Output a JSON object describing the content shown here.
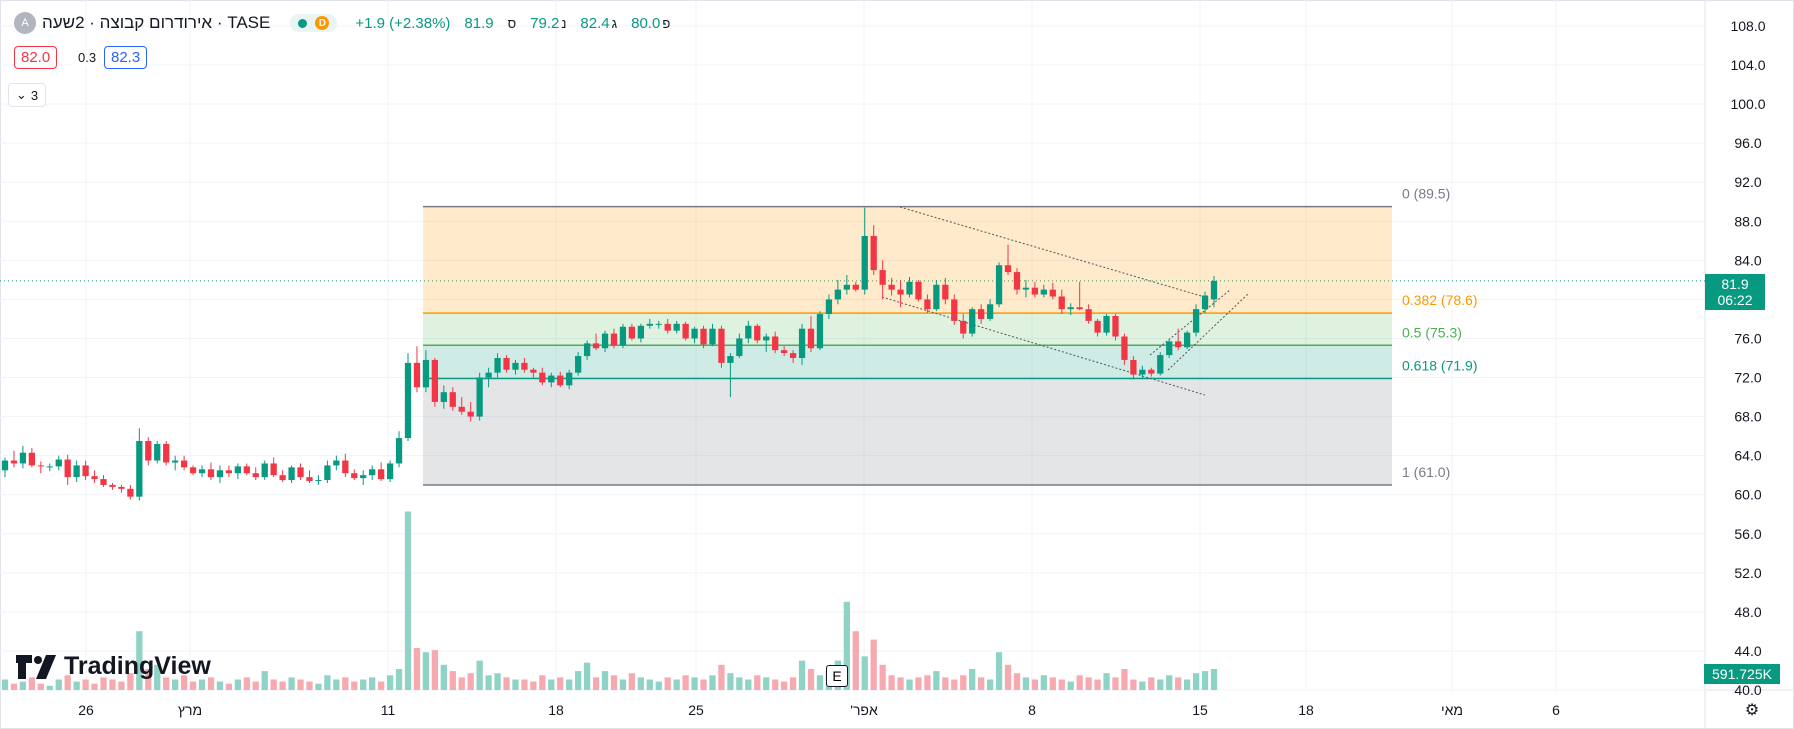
{
  "header": {
    "symbol_badge": "A",
    "title": "אירודרום קבוצה · 2שעה · TASE",
    "status_letter": "D",
    "ohlc": [
      {
        "label": "פ",
        "value": "80.0"
      },
      {
        "label": "ג",
        "value": "82.4"
      },
      {
        "label": "נ",
        "value": "79.2"
      },
      {
        "label": "ס",
        "value": "81.9"
      }
    ],
    "change": "+1.9 (+2.38%)"
  },
  "quote": {
    "bid": "82.0",
    "spread": "0.3",
    "ask": "82.3"
  },
  "collapse": {
    "count": "3"
  },
  "brand": {
    "name": "TradingView"
  },
  "earnings_marker": "E",
  "colors": {
    "up": "#089981",
    "down": "#f23645",
    "vol_up": "#8fd3c6",
    "vol_down": "#f7a9b0"
  },
  "price_axis": {
    "ticks": [
      "108.0",
      "104.0",
      "100.0",
      "96.0",
      "92.0",
      "88.0",
      "84.0",
      "80.0",
      "76.0",
      "72.0",
      "68.0",
      "64.0",
      "60.0",
      "56.0",
      "52.0",
      "48.0",
      "44.0",
      "40.0"
    ],
    "current_price": "81.9",
    "countdown": "06:22",
    "volume_label": "591.725K"
  },
  "time_axis": {
    "labels": [
      "26",
      "מרץ",
      "11",
      "18",
      "25",
      "'אפר",
      "8",
      "15",
      "18",
      "מאי",
      "6"
    ]
  },
  "fib": {
    "levels": [
      {
        "label": "0 (89.5)",
        "price": 89.5,
        "color": "#787b86"
      },
      {
        "label": "0.382 (78.6)",
        "price": 78.6,
        "color": "#ff9800"
      },
      {
        "label": "0.5 (75.3)",
        "price": 75.3,
        "color": "#4caf50"
      },
      {
        "label": "0.618 (71.9)",
        "price": 71.9,
        "color": "#089981"
      },
      {
        "label": "1 (61.0)",
        "price": 61.0,
        "color": "#787b86"
      }
    ]
  },
  "chart_data": {
    "type": "candlestick",
    "y_range": [
      40,
      110
    ],
    "ohlc": [
      [
        62.5,
        63.8,
        61.8,
        63.5
      ],
      [
        63.5,
        64.5,
        62.8,
        63.2
      ],
      [
        63.2,
        65.0,
        62.7,
        64.3
      ],
      [
        64.3,
        64.8,
        62.8,
        63.0
      ],
      [
        63.0,
        63.4,
        62.2,
        62.9
      ],
      [
        62.9,
        63.2,
        62.4,
        62.9
      ],
      [
        62.9,
        64.0,
        62.5,
        63.6
      ],
      [
        63.6,
        64.1,
        61.0,
        61.8
      ],
      [
        61.8,
        63.5,
        61.3,
        63.0
      ],
      [
        63.0,
        63.5,
        61.5,
        61.9
      ],
      [
        61.9,
        62.5,
        61.2,
        61.6
      ],
      [
        61.6,
        62.0,
        60.8,
        61.0
      ],
      [
        61.0,
        61.2,
        60.5,
        60.8
      ],
      [
        60.8,
        61.0,
        60.2,
        60.6
      ],
      [
        60.6,
        61.0,
        59.5,
        59.8
      ],
      [
        59.8,
        66.8,
        59.4,
        65.5
      ],
      [
        65.5,
        65.9,
        63.0,
        63.5
      ],
      [
        63.5,
        65.5,
        63.2,
        65.2
      ],
      [
        65.2,
        65.5,
        63.0,
        63.3
      ],
      [
        63.3,
        64.0,
        62.5,
        63.5
      ],
      [
        63.5,
        64.0,
        62.5,
        62.8
      ],
      [
        62.8,
        63.0,
        62.0,
        62.2
      ],
      [
        62.2,
        63.0,
        61.8,
        62.6
      ],
      [
        62.6,
        63.3,
        61.5,
        61.8
      ],
      [
        61.8,
        63.0,
        61.2,
        62.5
      ],
      [
        62.5,
        63.0,
        61.8,
        62.2
      ],
      [
        62.2,
        63.2,
        61.6,
        62.9
      ],
      [
        62.9,
        63.2,
        62.0,
        62.2
      ],
      [
        62.2,
        62.8,
        61.5,
        61.8
      ],
      [
        61.8,
        63.5,
        61.5,
        63.2
      ],
      [
        63.2,
        63.8,
        61.8,
        62.0
      ],
      [
        62.0,
        62.5,
        61.3,
        61.5
      ],
      [
        61.5,
        63.0,
        61.2,
        62.8
      ],
      [
        62.8,
        63.2,
        61.5,
        61.8
      ],
      [
        61.8,
        62.5,
        61.2,
        61.4
      ],
      [
        61.4,
        62.0,
        61.0,
        61.5
      ],
      [
        61.5,
        63.5,
        61.2,
        63.0
      ],
      [
        63.0,
        64.0,
        62.5,
        63.5
      ],
      [
        63.5,
        64.2,
        61.8,
        62.2
      ],
      [
        62.2,
        62.6,
        61.5,
        61.7
      ],
      [
        61.7,
        62.5,
        61.0,
        62.0
      ],
      [
        62.0,
        63.0,
        61.5,
        62.6
      ],
      [
        62.6,
        63.3,
        61.4,
        61.6
      ],
      [
        61.6,
        63.5,
        61.3,
        63.2
      ],
      [
        63.2,
        66.5,
        62.8,
        65.8
      ],
      [
        65.8,
        74.5,
        65.5,
        73.5
      ],
      [
        73.5,
        75.2,
        70.5,
        71.0
      ],
      [
        71.0,
        74.8,
        70.5,
        73.8
      ],
      [
        73.8,
        74.0,
        69.0,
        69.5
      ],
      [
        69.5,
        71.2,
        68.8,
        70.5
      ],
      [
        70.5,
        71.0,
        68.6,
        69.0
      ],
      [
        69.0,
        70.0,
        68.2,
        68.5
      ],
      [
        68.5,
        69.5,
        67.5,
        68.0
      ],
      [
        68.0,
        72.5,
        67.6,
        72.0
      ],
      [
        72.0,
        73.0,
        71.0,
        72.5
      ],
      [
        72.5,
        74.5,
        72.0,
        74.0
      ],
      [
        74.0,
        74.3,
        72.5,
        72.8
      ],
      [
        72.8,
        73.8,
        72.3,
        73.5
      ],
      [
        73.5,
        74.0,
        72.5,
        72.8
      ],
      [
        72.8,
        73.0,
        72.0,
        72.5
      ],
      [
        72.5,
        73.0,
        71.2,
        71.5
      ],
      [
        71.5,
        72.5,
        71.0,
        72.2
      ],
      [
        72.2,
        72.6,
        71.0,
        71.2
      ],
      [
        71.2,
        72.8,
        70.8,
        72.5
      ],
      [
        72.5,
        74.6,
        72.2,
        74.2
      ],
      [
        74.2,
        75.8,
        73.8,
        75.5
      ],
      [
        75.5,
        76.5,
        74.8,
        75.0
      ],
      [
        75.0,
        76.8,
        74.6,
        76.5
      ],
      [
        76.5,
        77.0,
        75.0,
        75.3
      ],
      [
        75.3,
        77.5,
        75.0,
        77.2
      ],
      [
        77.2,
        77.5,
        75.8,
        76.0
      ],
      [
        76.0,
        77.5,
        75.6,
        77.3
      ],
      [
        77.3,
        78.0,
        77.0,
        77.5
      ],
      [
        77.5,
        77.8,
        77.0,
        77.5
      ],
      [
        77.5,
        78.0,
        76.5,
        76.8
      ],
      [
        76.8,
        77.8,
        76.5,
        77.5
      ],
      [
        77.5,
        77.7,
        75.8,
        76.0
      ],
      [
        76.0,
        77.2,
        75.5,
        77.0
      ],
      [
        77.0,
        77.3,
        75.0,
        75.4
      ],
      [
        75.4,
        77.5,
        75.2,
        77.0
      ],
      [
        77.0,
        77.3,
        73.0,
        73.5
      ],
      [
        73.5,
        74.5,
        70.0,
        74.2
      ],
      [
        74.2,
        76.5,
        74.0,
        76.0
      ],
      [
        76.0,
        77.8,
        75.5,
        77.3
      ],
      [
        77.3,
        77.5,
        75.5,
        75.8
      ],
      [
        75.8,
        76.5,
        74.6,
        76.2
      ],
      [
        76.2,
        76.7,
        74.5,
        74.8
      ],
      [
        74.8,
        75.2,
        74.2,
        74.5
      ],
      [
        74.5,
        74.8,
        73.5,
        74.0
      ],
      [
        74.0,
        77.5,
        73.3,
        77.0
      ],
      [
        77.0,
        78.3,
        74.6,
        75.0
      ],
      [
        75.0,
        78.8,
        74.8,
        78.5
      ],
      [
        78.5,
        80.5,
        78.0,
        80.0
      ],
      [
        80.0,
        82.0,
        79.5,
        81.0
      ],
      [
        81.0,
        82.5,
        80.5,
        81.5
      ],
      [
        81.5,
        81.8,
        80.8,
        81.0
      ],
      [
        81.0,
        89.4,
        80.5,
        86.5
      ],
      [
        86.5,
        87.6,
        82.5,
        83.0
      ],
      [
        83.0,
        84.0,
        80.0,
        81.5
      ],
      [
        81.5,
        82.2,
        80.4,
        81.0
      ],
      [
        81.0,
        82.0,
        79.2,
        80.5
      ],
      [
        80.5,
        82.3,
        80.2,
        81.8
      ],
      [
        81.8,
        82.0,
        79.8,
        80.0
      ],
      [
        80.0,
        80.5,
        78.6,
        79.0
      ],
      [
        79.0,
        82.0,
        78.8,
        81.5
      ],
      [
        81.5,
        82.2,
        79.5,
        80.0
      ],
      [
        80.0,
        80.5,
        77.4,
        77.8
      ],
      [
        77.8,
        78.5,
        76.0,
        76.5
      ],
      [
        76.5,
        79.2,
        76.2,
        79.0
      ],
      [
        79.0,
        79.5,
        77.5,
        78.0
      ],
      [
        78.0,
        80.0,
        77.8,
        79.5
      ],
      [
        79.5,
        83.8,
        79.2,
        83.5
      ],
      [
        83.5,
        85.6,
        82.5,
        82.8
      ],
      [
        82.8,
        83.2,
        80.5,
        81.0
      ],
      [
        81.0,
        82.0,
        80.2,
        81.2
      ],
      [
        81.2,
        81.8,
        80.2,
        80.5
      ],
      [
        80.5,
        81.5,
        80.2,
        81.0
      ],
      [
        81.0,
        81.7,
        80.0,
        80.3
      ],
      [
        80.3,
        81.0,
        78.5,
        79.0
      ],
      [
        79.0,
        79.6,
        78.4,
        79.2
      ],
      [
        79.2,
        81.8,
        78.9,
        79.0
      ],
      [
        79.0,
        79.5,
        77.5,
        77.8
      ],
      [
        77.8,
        78.0,
        76.2,
        76.6
      ],
      [
        76.6,
        78.5,
        76.3,
        78.3
      ],
      [
        78.3,
        78.5,
        75.8,
        76.2
      ],
      [
        76.2,
        76.5,
        73.3,
        73.8
      ],
      [
        73.8,
        74.2,
        71.8,
        72.3
      ],
      [
        72.3,
        73.2,
        71.9,
        72.8
      ],
      [
        72.8,
        73.0,
        72.1,
        72.4
      ],
      [
        72.4,
        74.6,
        72.2,
        74.3
      ],
      [
        74.3,
        76.0,
        74.0,
        75.7
      ],
      [
        75.7,
        77.0,
        74.8,
        75.1
      ],
      [
        75.1,
        76.8,
        74.9,
        76.6
      ],
      [
        76.6,
        79.5,
        76.2,
        79.0
      ],
      [
        79.0,
        80.8,
        78.6,
        80.4
      ],
      [
        80.0,
        82.4,
        79.2,
        81.9
      ]
    ],
    "volume_scale_note": "volumes relative",
    "volumes": [
      0.05,
      0.03,
      0.04,
      0.06,
      0.03,
      0.02,
      0.05,
      0.07,
      0.04,
      0.05,
      0.03,
      0.06,
      0.05,
      0.04,
      0.08,
      0.28,
      0.1,
      0.12,
      0.06,
      0.05,
      0.07,
      0.04,
      0.05,
      0.06,
      0.04,
      0.03,
      0.05,
      0.06,
      0.04,
      0.09,
      0.05,
      0.04,
      0.06,
      0.05,
      0.04,
      0.03,
      0.07,
      0.05,
      0.06,
      0.04,
      0.05,
      0.06,
      0.04,
      0.07,
      0.1,
      0.85,
      0.2,
      0.18,
      0.19,
      0.12,
      0.09,
      0.06,
      0.08,
      0.14,
      0.07,
      0.08,
      0.06,
      0.05,
      0.05,
      0.04,
      0.07,
      0.05,
      0.06,
      0.05,
      0.09,
      0.13,
      0.06,
      0.09,
      0.07,
      0.05,
      0.08,
      0.06,
      0.05,
      0.04,
      0.06,
      0.05,
      0.07,
      0.06,
      0.05,
      0.07,
      0.12,
      0.08,
      0.06,
      0.05,
      0.07,
      0.06,
      0.05,
      0.04,
      0.06,
      0.14,
      0.1,
      0.07,
      0.09,
      0.14,
      0.42,
      0.28,
      0.16,
      0.24,
      0.12,
      0.07,
      0.06,
      0.05,
      0.06,
      0.07,
      0.09,
      0.06,
      0.05,
      0.07,
      0.1,
      0.06,
      0.05,
      0.18,
      0.12,
      0.08,
      0.06,
      0.05,
      0.07,
      0.06,
      0.05,
      0.04,
      0.07,
      0.06,
      0.05,
      0.08,
      0.06,
      0.1,
      0.05,
      0.04,
      0.06,
      0.05,
      0.07,
      0.06,
      0.05,
      0.08,
      0.09,
      0.1
    ]
  }
}
